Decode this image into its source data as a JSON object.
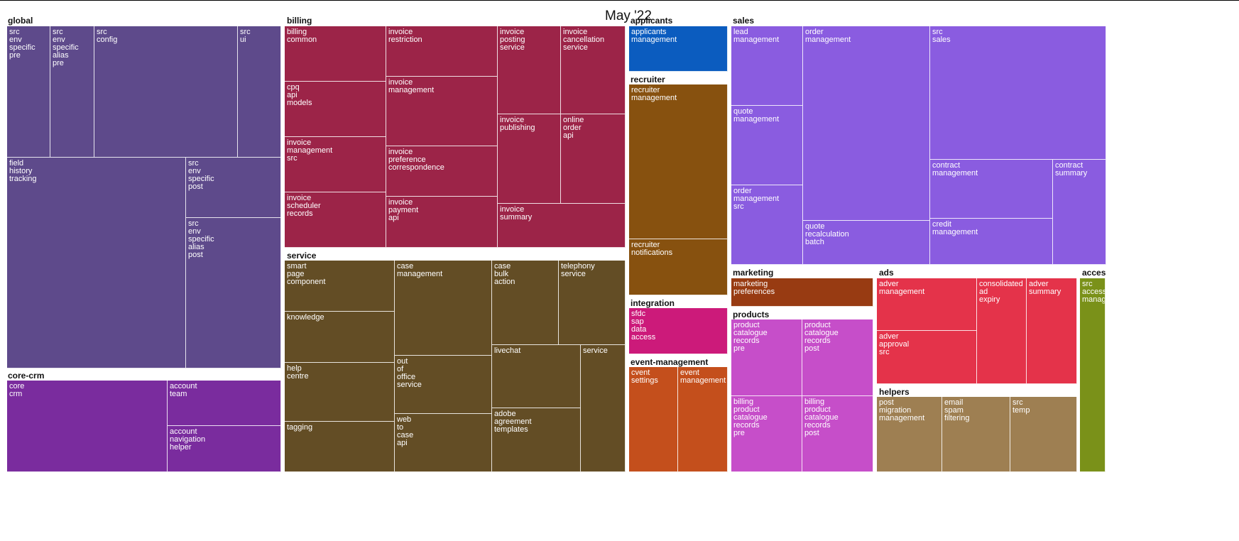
{
  "chart_data": {
    "type": "treemap",
    "title": "May '22",
    "groups": [
      {
        "name": "global",
        "color": "#5e4a8b",
        "children": [
          {
            "label": "src\nenv\nspecific\npre",
            "value": 71
          },
          {
            "label": "src\nenv\nspecific\nalias\npre",
            "value": 71
          },
          {
            "label": "src\nconfig",
            "value": 235
          },
          {
            "label": "src\nui",
            "value": 71
          },
          {
            "label": "field\nhistory\ntracking",
            "value": 740
          },
          {
            "label": "src\nenv\nspecific\npost",
            "value": 118
          },
          {
            "label": "src\nenv\nspecific\nalias\npost",
            "value": 300
          }
        ]
      },
      {
        "name": "core-crm",
        "color": "#7a2c9e",
        "children": [
          {
            "label": "core\ncrm",
            "value": 335
          },
          {
            "label": "account\nteam",
            "value": 100
          },
          {
            "label": "account\nnavigation\nhelper",
            "value": 100
          }
        ]
      },
      {
        "name": "billing",
        "color": "#9c2448",
        "children": [
          {
            "label": "billing\ncommon",
            "value": 111
          },
          {
            "label": "cpq\napi\nmodels",
            "value": 111
          },
          {
            "label": "invoice\nmanagement\nsrc",
            "value": 111
          },
          {
            "label": "invoice\nscheduler\nrecords",
            "value": 111
          },
          {
            "label": "invoice\nrestriction",
            "value": 111
          },
          {
            "label": "invoice\nmanagement",
            "value": 156
          },
          {
            "label": "invoice\npreference\ncorrespondence",
            "value": 111
          },
          {
            "label": "invoice\npayment\napi",
            "value": 111
          },
          {
            "label": "invoice\nposting\nservice",
            "value": 111
          },
          {
            "label": "invoice\ncancellation\nservice",
            "value": 111
          },
          {
            "label": "invoice\npublishing",
            "value": 111
          },
          {
            "label": "online\norder\napi",
            "value": 111
          },
          {
            "label": "invoice\nsummary",
            "value": 111
          }
        ]
      },
      {
        "name": "service",
        "color": "#634d25",
        "children": [
          {
            "label": "smart\npage\ncomponent",
            "value": 111
          },
          {
            "label": "knowledge",
            "value": 111
          },
          {
            "label": "help\ncentre",
            "value": 125
          },
          {
            "label": "tagging",
            "value": 111
          },
          {
            "label": "case\nmanagement",
            "value": 192
          },
          {
            "label": "out\nof\noffice\nservice",
            "value": 118
          },
          {
            "label": "web\nto\ncase\napi",
            "value": 118
          },
          {
            "label": "case\nbulk\naction",
            "value": 118
          },
          {
            "label": "telephony\nservice",
            "value": 118
          },
          {
            "label": "livechat",
            "value": 118
          },
          {
            "label": "adobe\nagreement\ntemplates",
            "value": 118
          },
          {
            "label": "service",
            "value": 118
          }
        ]
      },
      {
        "name": "applicants",
        "color": "#0b5cbf",
        "children": [
          {
            "label": "applicants\nmanagement",
            "value": 100
          }
        ]
      },
      {
        "name": "recruiter",
        "color": "#87510f",
        "children": [
          {
            "label": "recruiter\nmanagement",
            "value": 300
          },
          {
            "label": "recruiter\nnotifications",
            "value": 110
          }
        ]
      },
      {
        "name": "integration",
        "color": "#cc1a7a",
        "children": [
          {
            "label": "sfdc\nsap\ndata\naccess",
            "value": 100
          }
        ]
      },
      {
        "name": "event-management",
        "color": "#c44f1c",
        "children": [
          {
            "label": "cvent\nsettings",
            "value": 100
          },
          {
            "label": "event\nmanagement",
            "value": 100
          }
        ]
      },
      {
        "name": "sales",
        "color": "#8a5ce0",
        "children": [
          {
            "label": "lead\nmanagement",
            "value": 110
          },
          {
            "label": "quote\nmanagement",
            "value": 110
          },
          {
            "label": "order\nmanagement\nsrc",
            "value": 110
          },
          {
            "label": "order\nmanagement",
            "value": 280
          },
          {
            "label": "quote\nrecalculation\nbatch",
            "value": 60
          },
          {
            "label": "src\nsales",
            "value": 440
          },
          {
            "label": "contract\nmanagement",
            "value": 120
          },
          {
            "label": "credit\nmanagement",
            "value": 110
          },
          {
            "label": "contract\nsummary",
            "value": 100
          }
        ]
      },
      {
        "name": "marketing",
        "color": "#983b12",
        "children": [
          {
            "label": "marketing\npreferences",
            "value": 100
          }
        ]
      },
      {
        "name": "products",
        "color": "#c64ec9",
        "children": [
          {
            "label": "product\ncatalogue\nrecords\npre",
            "value": 100
          },
          {
            "label": "product\ncatalogue\nrecords\npost",
            "value": 100
          },
          {
            "label": "billing\nproduct\ncatalogue\nrecords\npre",
            "value": 100
          },
          {
            "label": "billing\nproduct\ncatalogue\nrecords\npost",
            "value": 100
          }
        ]
      },
      {
        "name": "ads",
        "color": "#e4334a",
        "children": [
          {
            "label": "adver\nmanagement",
            "value": 100
          },
          {
            "label": "adver\napproval\nsrc",
            "value": 100
          },
          {
            "label": "consolidated\nad\nexpiry",
            "value": 100
          },
          {
            "label": "adver\nsummary",
            "value": 100
          }
        ]
      },
      {
        "name": "helpers",
        "color": "#9e7f52",
        "children": [
          {
            "label": "post\nmigration\nmanagement",
            "value": 100
          },
          {
            "label": "email\nspam\nfiltering",
            "value": 100
          },
          {
            "label": "src\ntemp",
            "value": 100
          }
        ]
      },
      {
        "name": "acces",
        "color": "#7a9119",
        "children": [
          {
            "label": "src\naccess\nmanag",
            "value": 100
          }
        ]
      }
    ]
  }
}
